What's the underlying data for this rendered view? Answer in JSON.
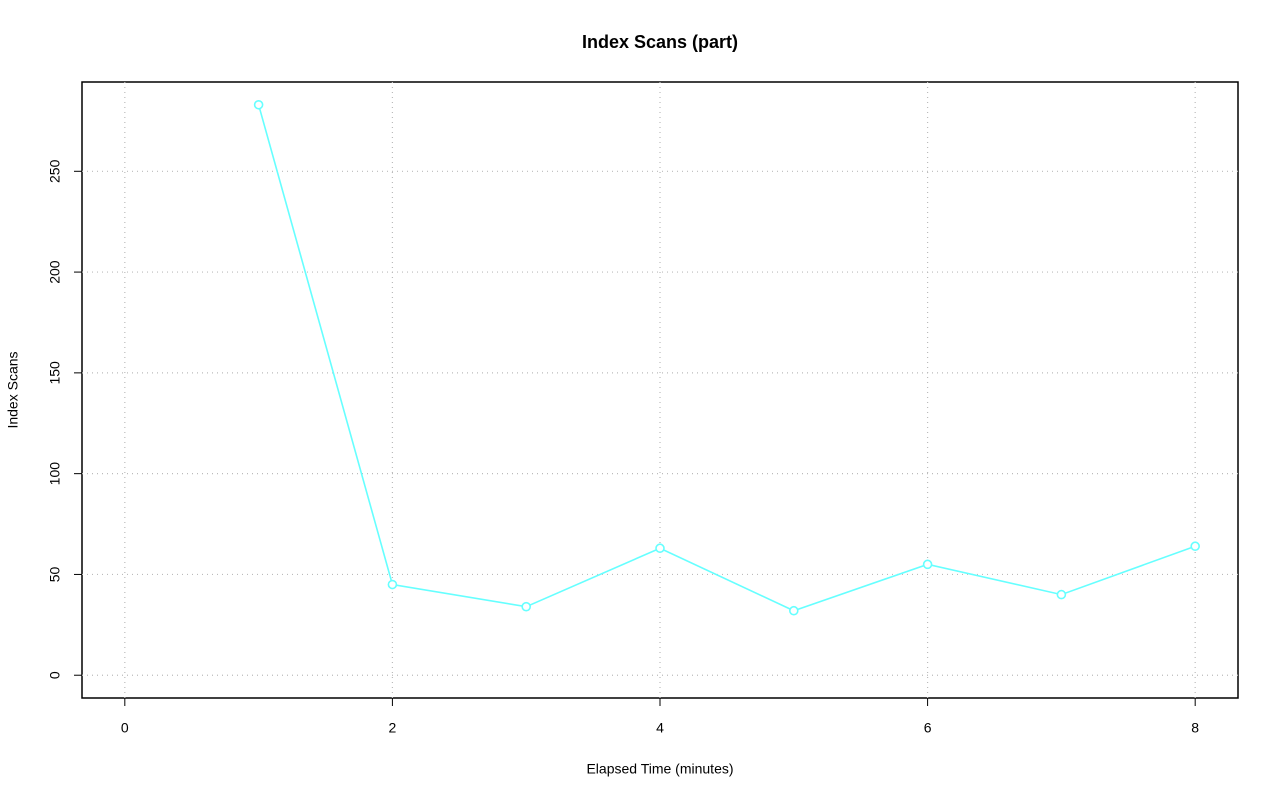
{
  "chart_data": {
    "type": "line",
    "title": "Index Scans (part)",
    "x_label": "Elapsed Time (minutes)",
    "y_label": "Index Scans",
    "x": [
      1,
      2,
      3,
      4,
      5,
      6,
      7,
      8
    ],
    "series": [
      {
        "name": "Index Scans",
        "color": "#66ffff",
        "values": [
          283,
          45,
          34,
          63,
          32,
          55,
          40,
          64
        ]
      }
    ],
    "xlim": [
      -0.32,
      8.32
    ],
    "xticks": [
      0,
      2,
      4,
      6,
      8
    ],
    "ylim": [
      -11.3,
      294.3
    ],
    "yticks": [
      0,
      50,
      100,
      150,
      200,
      250
    ],
    "grid": true
  }
}
